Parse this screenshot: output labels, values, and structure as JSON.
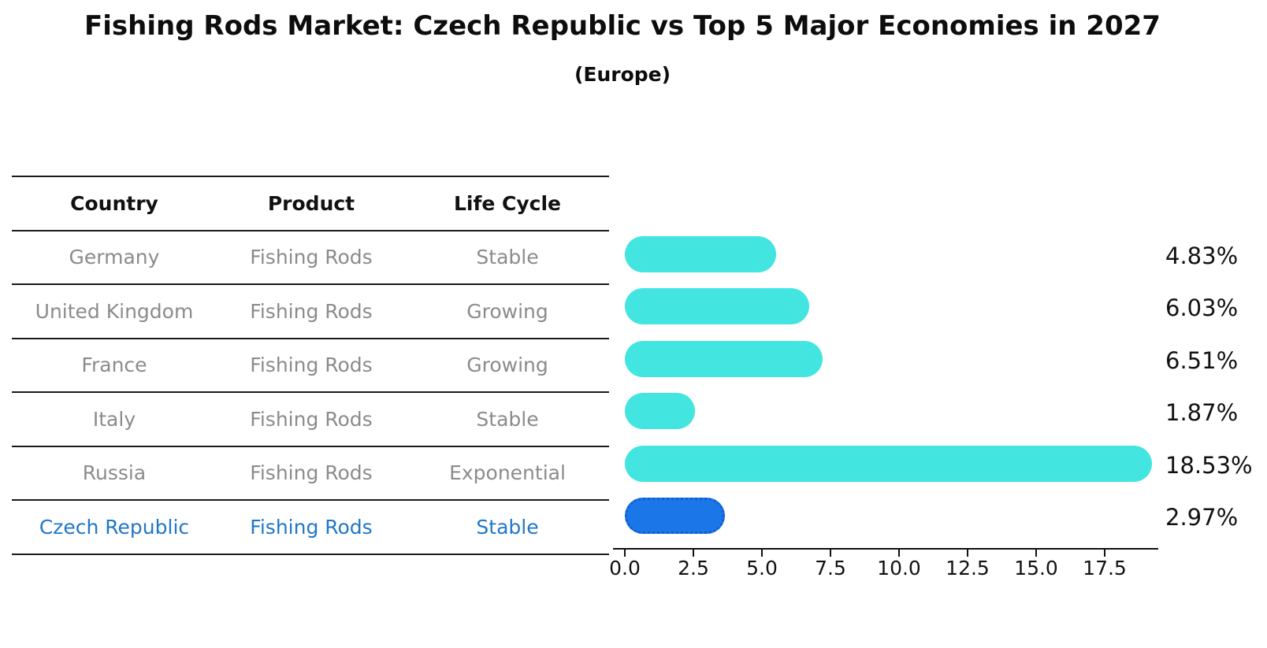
{
  "title": "Fishing Rods Market: Czech Republic vs Top 5 Major Economies in 2027",
  "subtitle": "(Europe)",
  "table": {
    "headers": [
      "Country",
      "Product",
      "Life Cycle"
    ],
    "rows": [
      {
        "country": "Germany",
        "product": "Fishing Rods",
        "life_cycle": "Stable",
        "highlight": false
      },
      {
        "country": "United Kingdom",
        "product": "Fishing Rods",
        "life_cycle": "Growing",
        "highlight": false
      },
      {
        "country": "France",
        "product": "Fishing Rods",
        "life_cycle": "Growing",
        "highlight": false
      },
      {
        "country": "Italy",
        "product": "Fishing Rods",
        "life_cycle": "Stable",
        "highlight": false
      },
      {
        "country": "Russia",
        "product": "Fishing Rods",
        "life_cycle": "Exponential",
        "highlight": false
      },
      {
        "country": "Czech Republic",
        "product": "Fishing Rods",
        "life_cycle": "Stable",
        "highlight": true
      }
    ]
  },
  "chart_data": {
    "type": "bar",
    "orientation": "horizontal",
    "title": "Fishing Rods Market: Czech Republic vs Top 5 Major Economies in 2027",
    "subtitle": "(Europe)",
    "categories": [
      "Germany",
      "United Kingdom",
      "France",
      "Italy",
      "Russia",
      "Czech Republic"
    ],
    "values": [
      4.83,
      6.03,
      6.51,
      1.87,
      18.53,
      2.97
    ],
    "value_labels": [
      "4.83%",
      "6.03%",
      "6.51%",
      "1.87%",
      "18.53%",
      "2.97%"
    ],
    "highlight_index": 5,
    "x_ticks": [
      "0.0",
      "2.5",
      "5.0",
      "7.5",
      "10.0",
      "12.5",
      "15.0",
      "17.5"
    ],
    "x_tick_values": [
      0,
      2.5,
      5,
      7.5,
      10,
      12.5,
      15,
      17.5
    ],
    "xlim": [
      0,
      19.4
    ],
    "grid": false,
    "legend": "none",
    "colors": {
      "bar_default": "#42e5e0",
      "bar_highlight": "#1b76e8",
      "highlight_text": "#1f77c8",
      "table_text": "#8b8b8b",
      "header_text": "#111111"
    }
  }
}
